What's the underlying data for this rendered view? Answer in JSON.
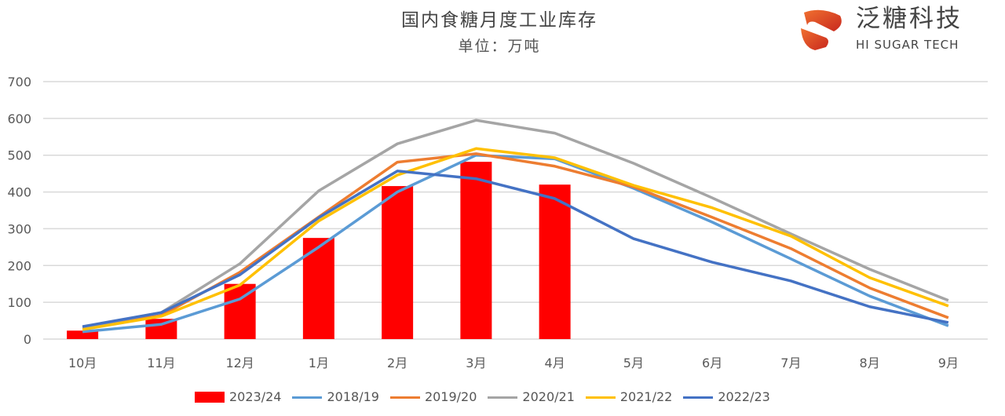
{
  "chart_data": {
    "type": "bar+line",
    "title": "国内食糖月度工业库存",
    "subtitle": "单位：万吨",
    "xlabel": "",
    "ylabel": "",
    "categories": [
      "10月",
      "11月",
      "12月",
      "1月",
      "2月",
      "3月",
      "4月",
      "5月",
      "6月",
      "7月",
      "8月",
      "9月"
    ],
    "ylim": [
      0,
      700
    ],
    "yticks": [
      0,
      100,
      200,
      300,
      400,
      500,
      600,
      700
    ],
    "grid": true,
    "legend_position": "bottom",
    "bar_series": {
      "name": "2023/24",
      "color": "#FF0000",
      "values": [
        23,
        55,
        150,
        275,
        416,
        482,
        420,
        null,
        null,
        null,
        null,
        null
      ]
    },
    "series": [
      {
        "name": "2018/19",
        "color": "#5B9BD5",
        "values": [
          20,
          40,
          109,
          250,
          400,
          500,
          490,
          410,
          318,
          218,
          117,
          36
        ]
      },
      {
        "name": "2019/20",
        "color": "#ED7D31",
        "values": [
          30,
          64,
          182,
          332,
          481,
          504,
          470,
          414,
          331,
          246,
          139,
          58
        ]
      },
      {
        "name": "2020/21",
        "color": "#A5A5A5",
        "values": [
          32,
          72,
          205,
          403,
          531,
          595,
          560,
          478,
          384,
          286,
          190,
          105
        ]
      },
      {
        "name": "2021/22",
        "color": "#FFC000",
        "values": [
          26,
          62,
          147,
          321,
          446,
          518,
          493,
          418,
          357,
          280,
          167,
          90
        ]
      },
      {
        "name": "2022/23",
        "color": "#4472C4",
        "values": [
          34,
          72,
          175,
          330,
          457,
          436,
          382,
          273,
          209,
          158,
          88,
          45
        ]
      }
    ]
  },
  "logo": {
    "cn": "泛糖科技",
    "en": "HI SUGAR TECH"
  }
}
